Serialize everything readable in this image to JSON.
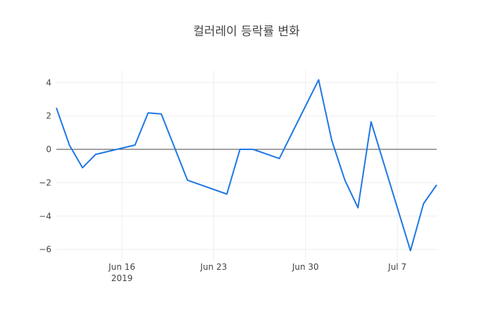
{
  "chart_data": {
    "type": "line",
    "title": "컬러레이 등락률 변화",
    "xlabel": "",
    "ylabel": "",
    "x_range": [
      "2019-06-11",
      "2019-07-10"
    ],
    "ylim": [
      -6.67,
      4.73
    ],
    "grid": true,
    "zero_line": true,
    "line_color": "#1f77e4",
    "x_ticks": [
      {
        "date": "2019-06-16",
        "label": "Jun 16",
        "sublabel": "2019"
      },
      {
        "date": "2019-06-23",
        "label": "Jun 23",
        "sublabel": ""
      },
      {
        "date": "2019-06-30",
        "label": "Jun 30",
        "sublabel": ""
      },
      {
        "date": "2019-07-07",
        "label": "Jul 7",
        "sublabel": ""
      }
    ],
    "y_ticks": [
      {
        "value": 4,
        "label": "4"
      },
      {
        "value": 2,
        "label": "2"
      },
      {
        "value": 0,
        "label": "0"
      },
      {
        "value": -2,
        "label": "−2"
      },
      {
        "value": -4,
        "label": "−4"
      },
      {
        "value": -6,
        "label": "−6"
      }
    ],
    "x": [
      "2019-06-11",
      "2019-06-12",
      "2019-06-13",
      "2019-06-14",
      "2019-06-17",
      "2019-06-18",
      "2019-06-19",
      "2019-06-21",
      "2019-06-24",
      "2019-06-25",
      "2019-06-26",
      "2019-06-28",
      "2019-07-01",
      "2019-07-02",
      "2019-07-03",
      "2019-07-04",
      "2019-07-05",
      "2019-07-08",
      "2019-07-09",
      "2019-07-10"
    ],
    "y": [
      2.49,
      0.25,
      -1.1,
      -0.3,
      0.26,
      2.19,
      2.12,
      -1.85,
      -2.68,
      0.0,
      0.0,
      -0.55,
      4.17,
      0.55,
      -1.85,
      -3.5,
      1.65,
      -6.07,
      -3.25,
      -2.13
    ]
  }
}
